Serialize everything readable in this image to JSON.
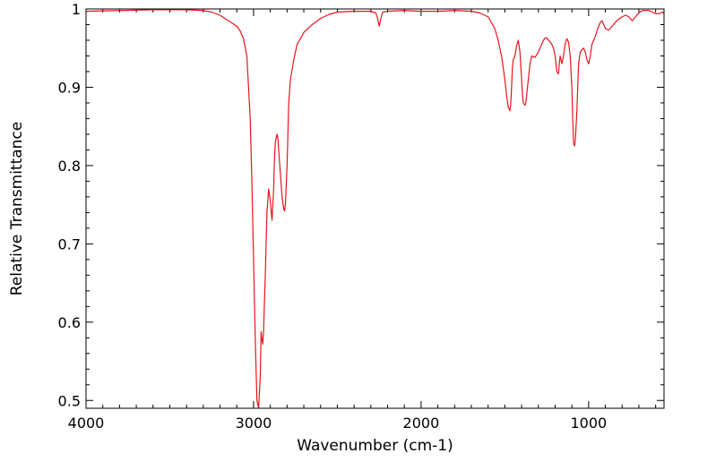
{
  "chart_data": {
    "type": "line",
    "title": "",
    "xlabel": "Wavenumber (cm-1)",
    "ylabel": "Relative Transmittance",
    "xlim": [
      4000,
      550
    ],
    "ylim": [
      0.49,
      1.0
    ],
    "x_reversed": true,
    "grid": false,
    "legend": "none",
    "x_ticks": [
      {
        "value": 4000,
        "label": "4000"
      },
      {
        "value": 3000,
        "label": "3000"
      },
      {
        "value": 2000,
        "label": "2000"
      },
      {
        "value": 1000,
        "label": "1000"
      }
    ],
    "y_ticks": [
      {
        "value": 1.0,
        "label": "1"
      },
      {
        "value": 0.9,
        "label": "0.9"
      },
      {
        "value": 0.8,
        "label": "0.8"
      },
      {
        "value": 0.7,
        "label": "0.7"
      },
      {
        "value": 0.6,
        "label": "0.6"
      },
      {
        "value": 0.5,
        "label": "0.5"
      }
    ],
    "series": [
      {
        "color": "#e8141c",
        "x": [
          4000,
          3800,
          3600,
          3400,
          3300,
          3250,
          3200,
          3150,
          3100,
          3080,
          3060,
          3040,
          3020,
          3010,
          3000,
          2990,
          2980,
          2970,
          2960,
          2955,
          2950,
          2945,
          2940,
          2930,
          2920,
          2910,
          2900,
          2890,
          2880,
          2875,
          2870,
          2860,
          2855,
          2850,
          2840,
          2830,
          2820,
          2815,
          2810,
          2800,
          2790,
          2780,
          2760,
          2740,
          2720,
          2700,
          2650,
          2600,
          2550,
          2500,
          2400,
          2300,
          2270,
          2260,
          2250,
          2240,
          2230,
          2200,
          2100,
          2000,
          1900,
          1800,
          1700,
          1650,
          1600,
          1560,
          1540,
          1520,
          1500,
          1490,
          1480,
          1470,
          1465,
          1460,
          1455,
          1450,
          1440,
          1430,
          1420,
          1410,
          1400,
          1395,
          1390,
          1380,
          1375,
          1370,
          1360,
          1350,
          1340,
          1320,
          1300,
          1280,
          1270,
          1260,
          1250,
          1240,
          1230,
          1220,
          1210,
          1200,
          1190,
          1180,
          1175,
          1170,
          1165,
          1160,
          1150,
          1140,
          1130,
          1120,
          1110,
          1100,
          1095,
          1090,
          1085,
          1080,
          1070,
          1060,
          1050,
          1040,
          1030,
          1020,
          1010,
          1000,
          990,
          980,
          970,
          960,
          950,
          940,
          930,
          920,
          910,
          900,
          880,
          860,
          840,
          820,
          800,
          780,
          760,
          740,
          720,
          700,
          680,
          660,
          640,
          620,
          600,
          580,
          560,
          550
        ],
        "y": [
          0.997,
          0.998,
          0.999,
          0.999,
          0.998,
          0.996,
          0.992,
          0.985,
          0.978,
          0.972,
          0.962,
          0.94,
          0.86,
          0.78,
          0.68,
          0.58,
          0.5,
          0.49,
          0.53,
          0.588,
          0.578,
          0.572,
          0.59,
          0.66,
          0.74,
          0.77,
          0.755,
          0.73,
          0.77,
          0.81,
          0.83,
          0.84,
          0.835,
          0.82,
          0.79,
          0.76,
          0.745,
          0.742,
          0.75,
          0.8,
          0.88,
          0.91,
          0.935,
          0.955,
          0.962,
          0.97,
          0.98,
          0.988,
          0.993,
          0.996,
          0.997,
          0.997,
          0.995,
          0.988,
          0.978,
          0.988,
          0.996,
          0.997,
          0.998,
          0.997,
          0.997,
          0.998,
          0.997,
          0.995,
          0.99,
          0.975,
          0.96,
          0.94,
          0.91,
          0.89,
          0.875,
          0.87,
          0.878,
          0.9,
          0.925,
          0.935,
          0.94,
          0.953,
          0.96,
          0.945,
          0.91,
          0.89,
          0.88,
          0.877,
          0.88,
          0.89,
          0.91,
          0.93,
          0.94,
          0.938,
          0.945,
          0.955,
          0.96,
          0.963,
          0.963,
          0.96,
          0.958,
          0.955,
          0.95,
          0.94,
          0.92,
          0.917,
          0.93,
          0.94,
          0.935,
          0.93,
          0.94,
          0.955,
          0.962,
          0.958,
          0.94,
          0.9,
          0.86,
          0.83,
          0.825,
          0.83,
          0.87,
          0.93,
          0.945,
          0.948,
          0.95,
          0.945,
          0.935,
          0.93,
          0.94,
          0.955,
          0.96,
          0.965,
          0.972,
          0.978,
          0.983,
          0.985,
          0.98,
          0.975,
          0.973,
          0.978,
          0.983,
          0.987,
          0.99,
          0.992,
          0.99,
          0.985,
          0.99,
          0.995,
          0.998,
          0.998,
          0.998,
          0.996,
          0.994,
          0.994,
          0.996,
          0.994
        ]
      }
    ]
  }
}
